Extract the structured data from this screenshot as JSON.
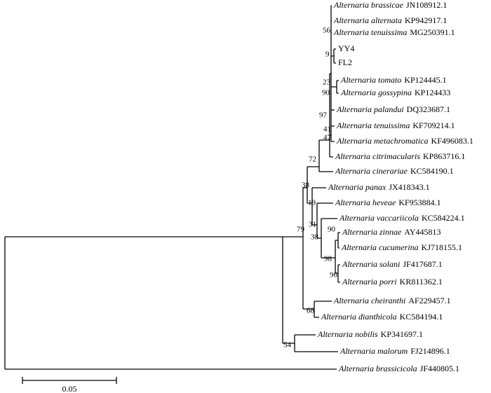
{
  "leaves": [
    {
      "species": "Alternaria brassicae",
      "accession": "JN108912.1"
    },
    {
      "species": "Alternaria alternata",
      "accession": "KP942917.1"
    },
    {
      "species": "Alternaria tenuissima",
      "accession": "MG250391.1"
    },
    {
      "label": "YY4"
    },
    {
      "label": "FL2"
    },
    {
      "species": "Alternaria tomato",
      "accession": "KP124445.1"
    },
    {
      "species": "Alternaria gossypina",
      "accession": "KP124433"
    },
    {
      "species": "Alternaria palandui",
      "accession": "DQ323687.1"
    },
    {
      "species": "Alternaria tenuissima",
      "accession": "KF709214.1"
    },
    {
      "species": "Alternaria metachromatica",
      "accession": "KF496083.1"
    },
    {
      "species": "Alternaria citrimacularis",
      "accession": "KP863716.1"
    },
    {
      "species": "Alternaria cinerariae",
      "accession": "KC584190.1"
    },
    {
      "species": "Alternaria panax",
      "accession": "JX418343.1"
    },
    {
      "species": "Alternaria heveae",
      "accession": "KF953884.1"
    },
    {
      "species": "Alternaria vaccariicola",
      "accession": "KC584224.1"
    },
    {
      "species": "Alternaria zinnae",
      "accession": "AY445813"
    },
    {
      "species": "Alternaria cucumerina",
      "accession": "KJ718155.1"
    },
    {
      "species": "Alternaria solani",
      "accession": "JF417687.1"
    },
    {
      "species": "Alternaria porri",
      "accession": "KR811362.1"
    },
    {
      "species": "Alternaria cheiranthi",
      "accession": "AF229457.1"
    },
    {
      "species": "Alternaria dianthicola",
      "accession": "KC584194.1"
    },
    {
      "species": "Alternaria nobilis",
      "accession": "KP341697.1"
    },
    {
      "species": "Alternaria malorum",
      "accession": "FJ214896.1"
    },
    {
      "species": "Alternaria brassicicola",
      "accession": "JF440805.1"
    }
  ],
  "bootstrap": [
    56,
    9,
    23,
    90,
    97,
    41,
    47,
    72,
    38,
    19,
    31,
    38,
    90,
    79,
    98,
    96,
    68,
    54
  ],
  "scale_bar": "0.05"
}
